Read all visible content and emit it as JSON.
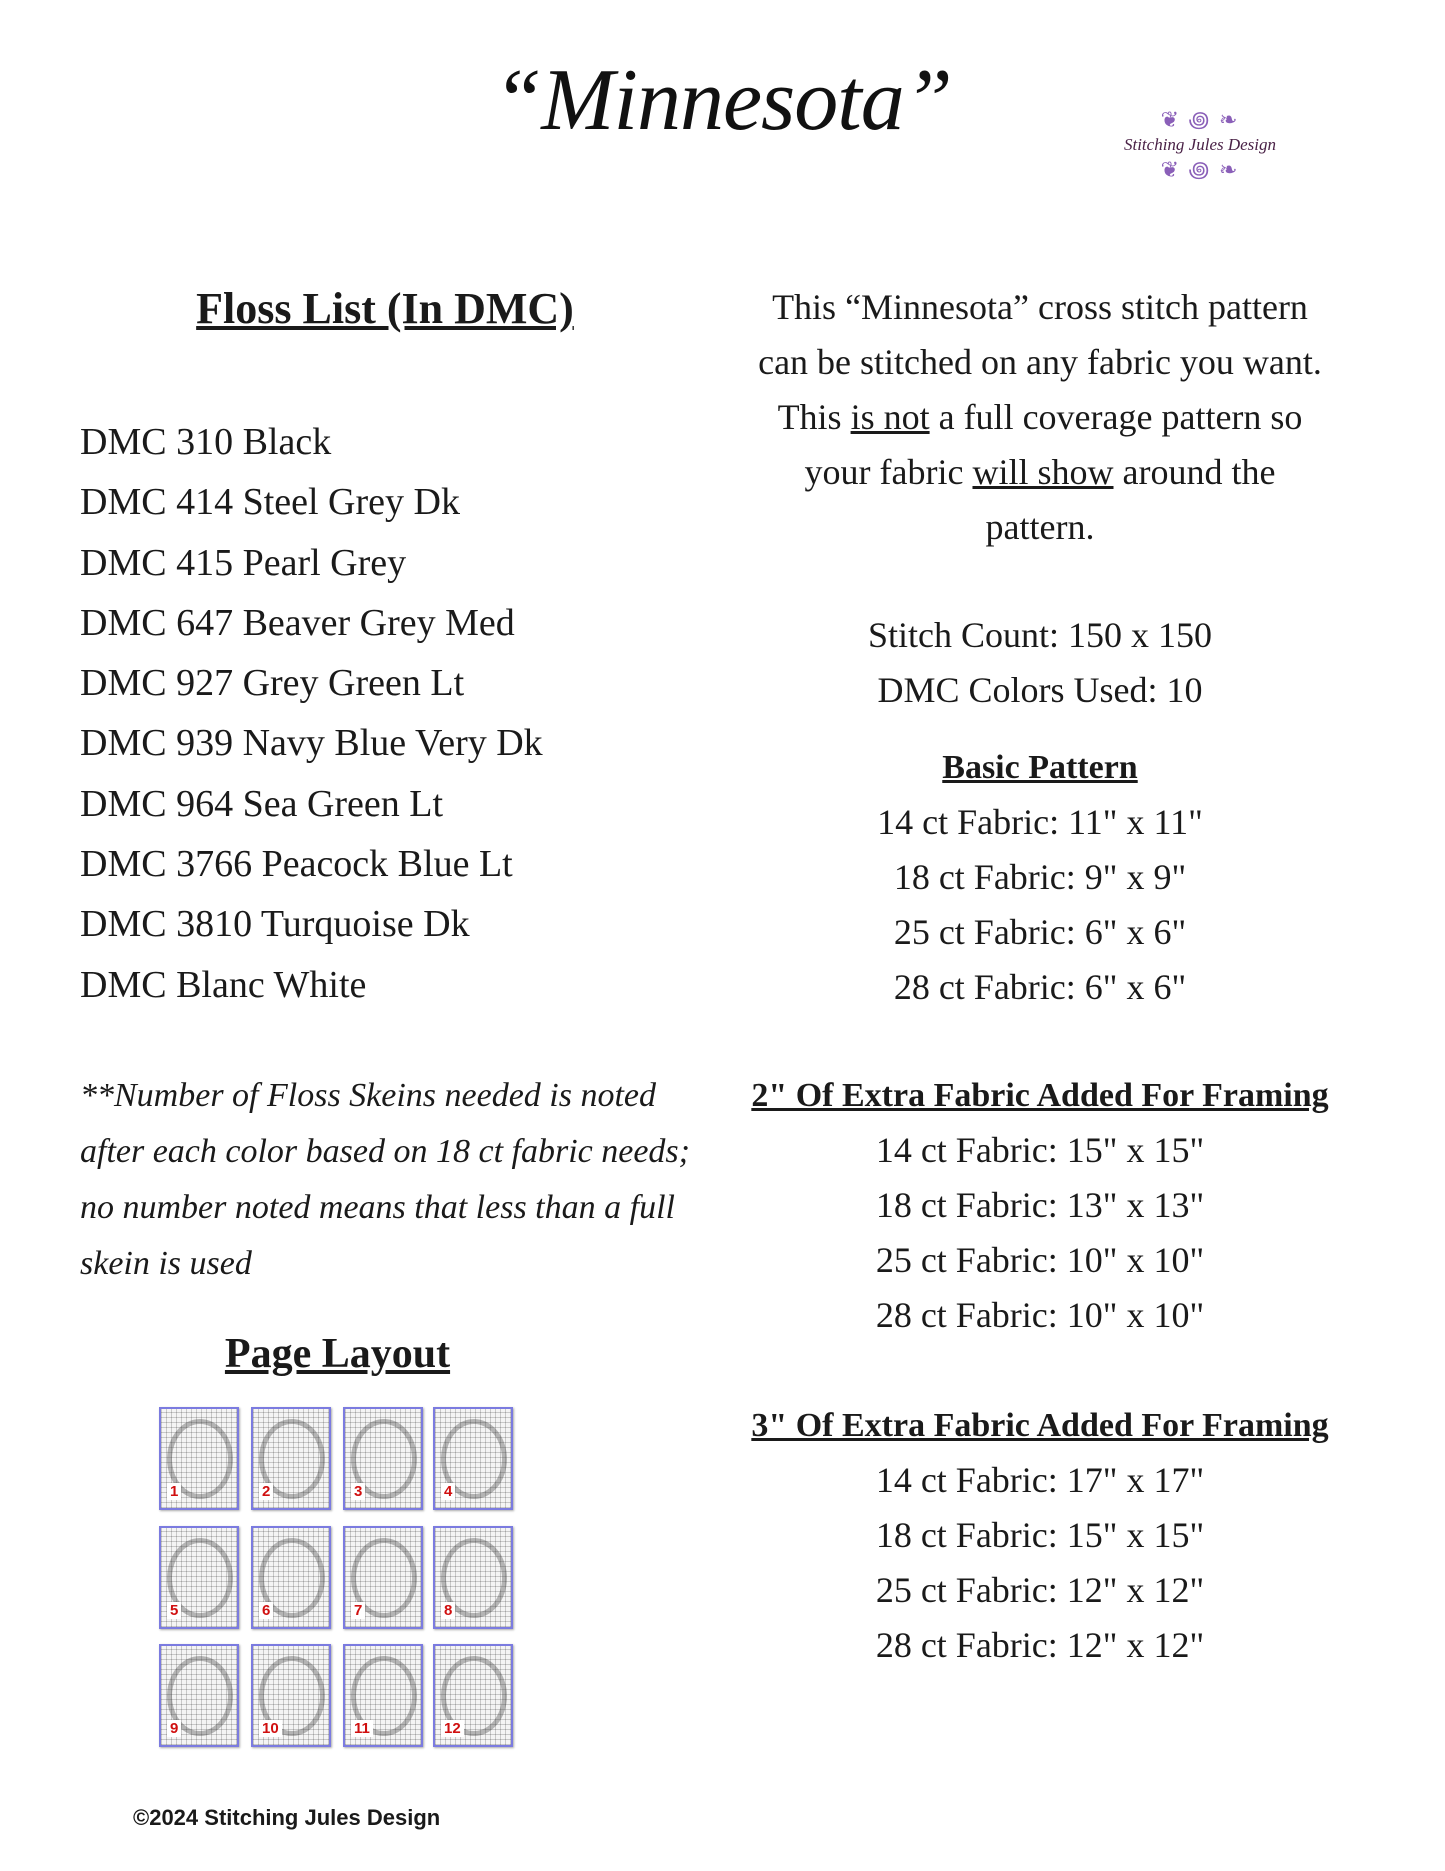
{
  "title": "“Minnesota”",
  "logo": {
    "text": "Stitching Jules Design",
    "color": "#8a5fb8"
  },
  "floss": {
    "heading": "Floss List (In DMC)",
    "items": [
      "DMC 310 Black",
      "DMC 414 Steel Grey Dk",
      "DMC 415 Pearl Grey",
      "DMC 647 Beaver Grey Med",
      "DMC 927 Grey Green Lt",
      "DMC 939 Navy Blue Very Dk",
      "DMC 964 Sea Green Lt",
      "DMC 3766 Peacock Blue Lt",
      "DMC 3810 Turquoise Dk",
      "DMC Blanc White"
    ],
    "note": "**Number of Floss Skeins needed is noted after each color based on 18 ct fabric needs; no number noted means that less than a full skein is used"
  },
  "intro": {
    "p1": "This  “Minnesota” cross stitch pattern",
    "p2": "can be stitched on any fabric you want.",
    "p3a": "This ",
    "p3u": "is not",
    "p3b": " a full coverage  pattern  so",
    "p4a": "your fabric ",
    "p4u": "will show",
    "p4b": " around the",
    "p5": "pattern."
  },
  "stats": {
    "stitch_count": "Stitch Count:   150 x 150",
    "colors_used": "DMC Colors Used:  10"
  },
  "sections": [
    {
      "heading": "Basic Pattern",
      "rows": [
        "14 ct Fabric: 11\" x 11\"",
        "18 ct Fabric: 9\" x 9\"",
        "25 ct Fabric: 6\" x 6\"",
        "28 ct Fabric:  6\" x 6\""
      ]
    },
    {
      "heading": "2\" Of Extra Fabric Added For Framing",
      "rows": [
        "14 ct Fabric:  15\" x 15\"",
        "18 ct Fabric:  13\" x 13\"",
        "25 ct Fabric:  10\" x 10\"",
        "28 ct Fabric:  10\" x 10\""
      ]
    },
    {
      "heading": "3\" Of Extra Fabric Added For Framing",
      "rows": [
        "14 ct Fabric:  17\" x 17\"",
        "18 ct Fabric:  15\" x 15\"",
        "25 ct Fabric:  12\" x 12\"",
        "28 ct Fabric:  12\" x 12\""
      ]
    }
  ],
  "layout": {
    "heading": "Page Layout",
    "pages": [
      "1",
      "2",
      "3",
      "4",
      "5",
      "6",
      "7",
      "8",
      "9",
      "10",
      "11",
      "12"
    ]
  },
  "copyright": "©2024 Stitching Jules Design"
}
